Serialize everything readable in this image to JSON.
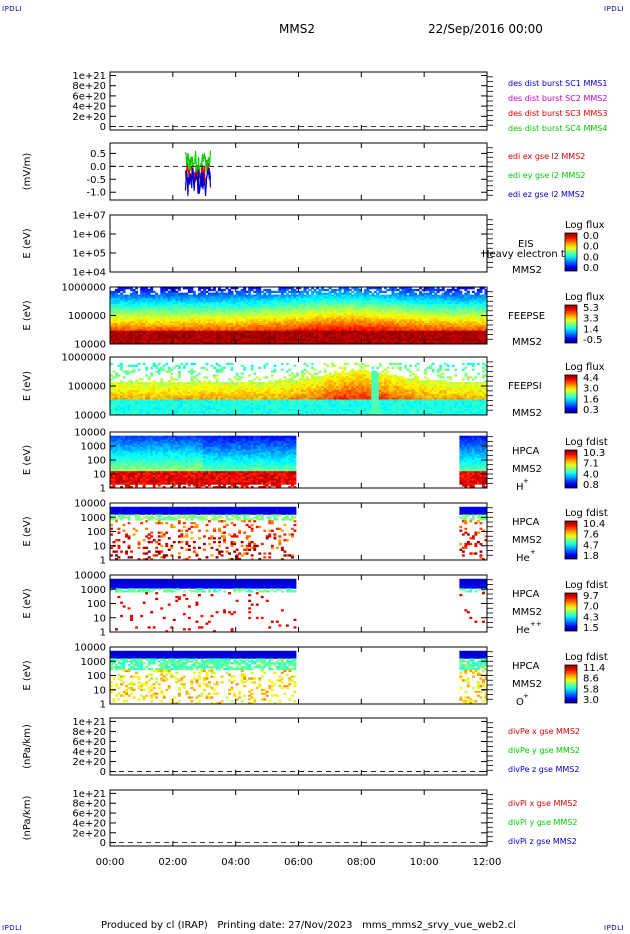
{
  "header": {
    "corner_label": "IPDLI",
    "mission": "MMS2",
    "date": "22/Sep/2016 00:00"
  },
  "footer": {
    "producer": "Produced by cl (IRAP)",
    "printing": "Printing date: 27/Nov/2023",
    "file": "mms_mms2_srvy_vue_web2.cl"
  },
  "colors": {
    "red": "#dd0000",
    "green": "#00cc00",
    "blue": "#0000cc",
    "magenta": "#cc00cc",
    "dashed": "#000000"
  },
  "chart_data": [
    {
      "type": "line",
      "panel": "des-dist",
      "ylabel": "",
      "yticks": [
        "1e+21",
        "8e+20",
        "6e+20",
        "4e+20",
        "2e+20",
        "0"
      ],
      "legend": [
        {
          "text": "des dist burst SC1 MMS1",
          "color": "#0000cc"
        },
        {
          "text": "des dist burst SC2 MMS2",
          "color": "#cc00cc"
        },
        {
          "text": "des dist burst SC3 MMS3",
          "color": "#dd0000"
        },
        {
          "text": "des dist burst SC4 MMS4",
          "color": "#00cc00"
        }
      ]
    },
    {
      "type": "line",
      "panel": "edi-e",
      "ylabel": "(mV/m)",
      "yticks": [
        "0.5",
        "0.0",
        "-0.5",
        "-1.0"
      ],
      "ylim": [
        -1.3,
        0.9
      ],
      "legend": [
        {
          "text": "edi ex gse l2 MMS2",
          "color": "#dd0000"
        },
        {
          "text": "edi ey gse l2 MMS2",
          "color": "#00cc00"
        },
        {
          "text": "edi ez gse l2 MMS2",
          "color": "#0000cc"
        }
      ],
      "active_time_h": [
        2.4,
        3.2
      ]
    },
    {
      "type": "heatmap",
      "panel": "eis",
      "ylabel": "E (eV)",
      "yticks": [
        "1e+07",
        "1e+06",
        "1e+05",
        "1e+04"
      ],
      "instrument": "EIS",
      "spacecraft": "MMS2",
      "overlay": "Heavy electron to",
      "cbar_title": "Log flux",
      "cbar_ticks": [
        "0.0",
        "0.0",
        "0.0",
        "0.0"
      ]
    },
    {
      "type": "heatmap",
      "panel": "feepse",
      "ylabel": "E (eV)",
      "yticks": [
        "1000000",
        "100000",
        "10000"
      ],
      "instrument": "FEEPSE",
      "spacecraft": "MMS2",
      "cbar_title": "Log flux",
      "cbar_ticks": [
        "5.3",
        "3.3",
        "1.4",
        "-0.5"
      ]
    },
    {
      "type": "heatmap",
      "panel": "feepsi",
      "ylabel": "E (eV)",
      "yticks": [
        "1000000",
        "100000",
        "10000"
      ],
      "instrument": "FEEPSI",
      "spacecraft": "MMS2",
      "cbar_title": "Log flux",
      "cbar_ticks": [
        "4.4",
        "3.0",
        "1.6",
        "0.3"
      ]
    },
    {
      "type": "heatmap",
      "panel": "hpca-h",
      "ylabel": "E (eV)",
      "yticks": [
        "10000",
        "1000",
        "100",
        "10",
        "1"
      ],
      "instrument": "HPCA",
      "spacecraft": "MMS2",
      "species": "H",
      "species_sup": "+",
      "cbar_title": "Log fdist",
      "cbar_ticks": [
        "10.3",
        "7.1",
        "4.0",
        "0.8"
      ],
      "data_gaps_h": [
        [
          5.95,
          11.1
        ]
      ]
    },
    {
      "type": "heatmap",
      "panel": "hpca-he",
      "ylabel": "E (eV)",
      "yticks": [
        "10000",
        "1000",
        "100",
        "10",
        "1"
      ],
      "instrument": "HPCA",
      "spacecraft": "MMS2",
      "species": "He",
      "species_sup": "+",
      "cbar_title": "Log fdist",
      "cbar_ticks": [
        "10.4",
        "7.6",
        "4.7",
        "1.8"
      ],
      "data_gaps_h": [
        [
          5.95,
          11.1
        ]
      ]
    },
    {
      "type": "heatmap",
      "panel": "hpca-hepp",
      "ylabel": "E (eV)",
      "yticks": [
        "10000",
        "1000",
        "100",
        "10",
        "1"
      ],
      "instrument": "HPCA",
      "spacecraft": "MMS2",
      "species": "He",
      "species_sup": "++",
      "cbar_title": "Log fdist",
      "cbar_ticks": [
        "9.7",
        "7.0",
        "4.3",
        "1.5"
      ],
      "data_gaps_h": [
        [
          5.95,
          11.1
        ]
      ]
    },
    {
      "type": "heatmap",
      "panel": "hpca-o",
      "ylabel": "E (eV)",
      "yticks": [
        "10000",
        "1000",
        "100",
        "10",
        "1"
      ],
      "instrument": "HPCA",
      "spacecraft": "MMS2",
      "species": "O",
      "species_sup": "+",
      "cbar_title": "Log fdist",
      "cbar_ticks": [
        "11.4",
        "8.6",
        "5.8",
        "3.0"
      ],
      "data_gaps_h": [
        [
          5.95,
          11.1
        ]
      ]
    },
    {
      "type": "line",
      "panel": "divpe",
      "ylabel": "(nPa/km)",
      "yticks": [
        "1e+21",
        "8e+20",
        "6e+20",
        "4e+20",
        "2e+20",
        "0"
      ],
      "legend": [
        {
          "text": "divPe x gse MMS2",
          "color": "#dd0000"
        },
        {
          "text": "divPe y gse MMS2",
          "color": "#00cc00"
        },
        {
          "text": "divPe z gse MMS2",
          "color": "#0000cc"
        }
      ]
    },
    {
      "type": "line",
      "panel": "divpi",
      "ylabel": "(nPa/km)",
      "yticks": [
        "1e+21",
        "8e+20",
        "6e+20",
        "4e+20",
        "2e+20",
        "0"
      ],
      "legend": [
        {
          "text": "divPi x gse MMS2",
          "color": "#dd0000"
        },
        {
          "text": "divPi y gse MMS2",
          "color": "#00cc00"
        },
        {
          "text": "divPi z gse MMS2",
          "color": "#0000cc"
        }
      ]
    }
  ],
  "xaxis": {
    "range_h": [
      0,
      12
    ],
    "ticks": [
      "00:00",
      "02:00",
      "04:00",
      "06:00",
      "08:00",
      "10:00",
      "12:00"
    ]
  }
}
